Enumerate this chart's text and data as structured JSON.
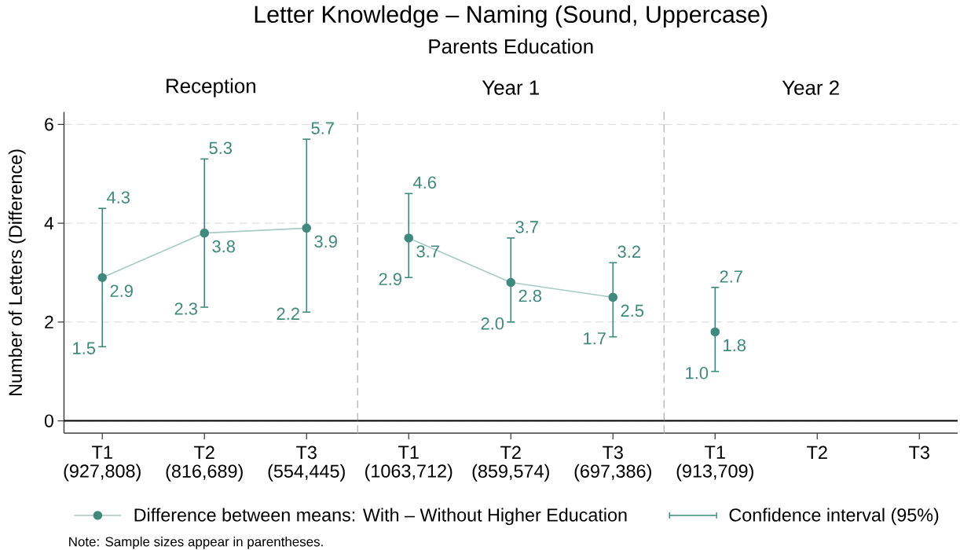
{
  "chart_data": [
    {
      "type": "other",
      "title": "Letter Knowledge – Naming (Sound, Uppercase)",
      "subtitle": "Parents Education",
      "annotations": [
        "Note: Sample sizes appear in parentheses."
      ]
    },
    {
      "type": "line",
      "title": "Reception",
      "categories": [
        "T1 (927,808)",
        "T2 (816,689)",
        "T3 (554,445)"
      ],
      "ylabel": "Number of Letters (Difference)",
      "ylim": [
        -0.25,
        6.25
      ],
      "yticks": [
        0,
        2,
        4,
        6
      ],
      "grid": "y",
      "marker": "circle",
      "data_labels": true,
      "legend": "bottom",
      "ref_lines": [
        {
          "axis": "y",
          "value": 0
        }
      ],
      "series": [
        {
          "name": "Difference between means: With – Without Higher Education",
          "color": "#3e8a7c",
          "values": [
            2.9,
            3.8,
            3.9
          ],
          "errors": [
            [
              1.5,
              4.3
            ],
            [
              2.3,
              5.3
            ],
            [
              2.2,
              5.7
            ]
          ]
        }
      ],
      "annotations": [
        {
          "text": "4.3",
          "x": "T1 (927,808)",
          "y": 4.3
        },
        {
          "text": "1.5",
          "x": "T1 (927,808)",
          "y": 1.5
        },
        {
          "text": "5.3",
          "x": "T2 (816,689)",
          "y": 5.3
        },
        {
          "text": "2.3",
          "x": "T2 (816,689)",
          "y": 2.3
        },
        {
          "text": "5.7",
          "x": "T3 (554,445)",
          "y": 5.7
        },
        {
          "text": "2.2",
          "x": "T3 (554,445)",
          "y": 2.2
        },
        "Confidence interval (95%)"
      ]
    },
    {
      "type": "line",
      "title": "Year 1",
      "categories": [
        "T1 (1063,712)",
        "T2 (859,574)",
        "T3 (697,386)"
      ],
      "ylim": [
        -0.25,
        6.25
      ],
      "yticks": [
        0,
        2,
        4,
        6
      ],
      "tick_labels": "x",
      "grid": "y",
      "marker": "circle",
      "data_labels": true,
      "ref_lines": [
        {
          "axis": "y",
          "value": 0
        }
      ],
      "series": [
        {
          "color": "#3e8a7c",
          "values": [
            3.7,
            2.8,
            2.5
          ],
          "errors": [
            [
              2.9,
              4.6
            ],
            [
              2.0,
              3.7
            ],
            [
              1.7,
              3.2
            ]
          ]
        }
      ],
      "annotations": [
        {
          "text": "4.6",
          "x": "T1 (1063,712)",
          "y": 4.6
        },
        {
          "text": "2.9",
          "x": "T1 (1063,712)",
          "y": 2.9
        },
        {
          "text": "3.7",
          "x": "T2 (859,574)",
          "y": 3.7
        },
        {
          "text": "2.0",
          "x": "T2 (859,574)",
          "y": 2.0
        },
        {
          "text": "3.2",
          "x": "T3 (697,386)",
          "y": 3.2
        },
        {
          "text": "1.7",
          "x": "T3 (697,386)",
          "y": 1.7
        }
      ]
    },
    {
      "type": "line",
      "title": "Year 2",
      "categories": [
        "T1 (913,709)",
        "T2",
        "T3"
      ],
      "ylim": [
        -0.25,
        6.25
      ],
      "yticks": [
        0,
        2,
        4,
        6
      ],
      "tick_labels": "x",
      "grid": "y",
      "marker": "circle",
      "data_labels": true,
      "ref_lines": [
        {
          "axis": "y",
          "value": 0
        }
      ],
      "series": [
        {
          "color": "#3e8a7c",
          "values": [
            1.8,
            null,
            null
          ],
          "errors": [
            [
              1.0,
              2.7
            ],
            null,
            null
          ]
        }
      ],
      "annotations": [
        {
          "text": "2.7",
          "x": "T1 (913,709)",
          "y": 2.7
        },
        {
          "text": "1.0",
          "x": "T1 (913,709)",
          "y": 1.0
        }
      ]
    }
  ]
}
